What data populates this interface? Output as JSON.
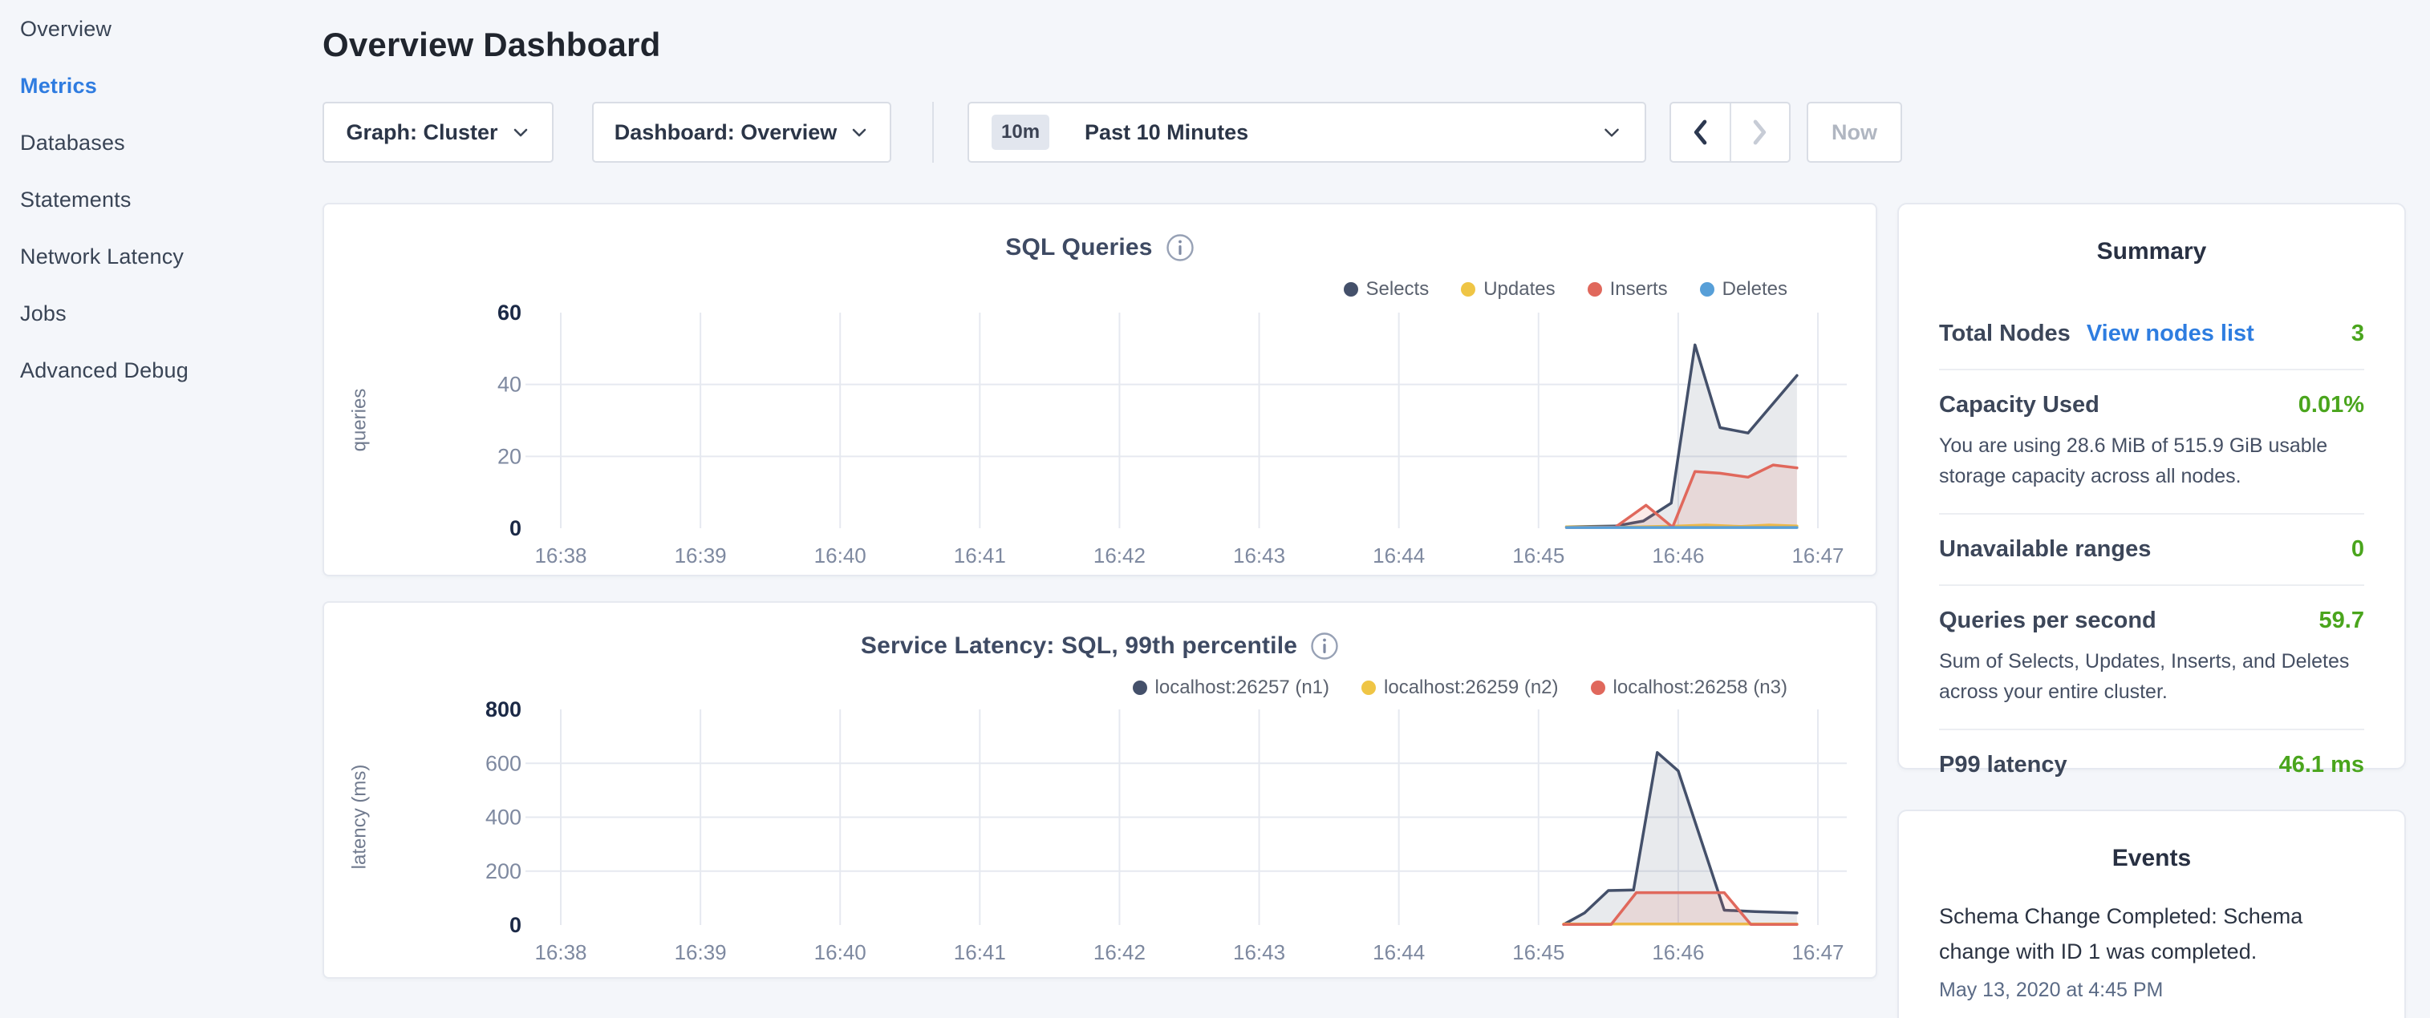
{
  "page": {
    "title": "Overview Dashboard"
  },
  "sidebar": {
    "items": [
      {
        "label": "Overview",
        "active": false
      },
      {
        "label": "Metrics",
        "active": true
      },
      {
        "label": "Databases",
        "active": false
      },
      {
        "label": "Statements",
        "active": false
      },
      {
        "label": "Network Latency",
        "active": false
      },
      {
        "label": "Jobs",
        "active": false
      },
      {
        "label": "Advanced Debug",
        "active": false
      }
    ]
  },
  "toolbar": {
    "graph_dropdown": "Graph: Cluster",
    "dashboard_dropdown": "Dashboard: Overview",
    "time_window_badge": "10m",
    "time_window_label": "Past 10 Minutes",
    "now_button": "Now"
  },
  "colors": {
    "accent_blue": "#2f7ce0",
    "value_green": "#4aa51d",
    "series_navy": "#44506a",
    "series_yellow": "#efc545",
    "series_red": "#e0685c",
    "series_blue": "#579fd8",
    "grid": "#e6e9f0"
  },
  "chart_data": [
    {
      "type": "area",
      "title": "SQL Queries",
      "xlabel": "",
      "ylabel": "queries",
      "ylim": [
        0,
        60
      ],
      "yticks": [
        0,
        20,
        40,
        60
      ],
      "xlim": [
        0,
        9
      ],
      "xticks": [
        0,
        1,
        2,
        3,
        4,
        5,
        6,
        7,
        8,
        9
      ],
      "xtick_labels": [
        "16:38",
        "16:39",
        "16:40",
        "16:41",
        "16:42",
        "16:43",
        "16:44",
        "16:45",
        "16:46",
        "16:47"
      ],
      "grid": true,
      "legend_position": "top-right",
      "series": [
        {
          "name": "Selects",
          "color": "#44506a",
          "fill": "rgba(68,80,106,0.12)",
          "points": [
            [
              7.2,
              0.4
            ],
            [
              7.55,
              0.6
            ],
            [
              7.75,
              2
            ],
            [
              7.95,
              7
            ],
            [
              8.12,
              51
            ],
            [
              8.3,
              28
            ],
            [
              8.5,
              26.5
            ],
            [
              8.85,
              42.5
            ]
          ]
        },
        {
          "name": "Updates",
          "color": "#efc545",
          "fill": "rgba(239,197,69,0.10)",
          "points": [
            [
              7.2,
              0.4
            ],
            [
              7.6,
              0.3
            ],
            [
              8.0,
              0.6
            ],
            [
              8.2,
              0.9
            ],
            [
              8.45,
              0.5
            ],
            [
              8.65,
              0.9
            ],
            [
              8.85,
              0.6
            ]
          ]
        },
        {
          "name": "Inserts",
          "color": "#e0685c",
          "fill": "rgba(224,104,92,0.14)",
          "points": [
            [
              7.2,
              0.2
            ],
            [
              7.55,
              0.3
            ],
            [
              7.77,
              6.4
            ],
            [
              7.96,
              0.3
            ],
            [
              8.12,
              15.8
            ],
            [
              8.3,
              15.3
            ],
            [
              8.5,
              14.2
            ],
            [
              8.68,
              17.6
            ],
            [
              8.85,
              16.8
            ]
          ]
        },
        {
          "name": "Deletes",
          "color": "#579fd8",
          "fill": "none",
          "points": [
            [
              7.2,
              0.2
            ],
            [
              8.85,
              0.2
            ]
          ]
        }
      ]
    },
    {
      "type": "area",
      "title": "Service Latency: SQL, 99th percentile",
      "xlabel": "",
      "ylabel": "latency (ms)",
      "ylim": [
        0,
        800
      ],
      "yticks": [
        0,
        200,
        400,
        600,
        800
      ],
      "xlim": [
        0,
        9
      ],
      "xticks": [
        0,
        1,
        2,
        3,
        4,
        5,
        6,
        7,
        8,
        9
      ],
      "xtick_labels": [
        "16:38",
        "16:39",
        "16:40",
        "16:41",
        "16:42",
        "16:43",
        "16:44",
        "16:45",
        "16:46",
        "16:47"
      ],
      "grid": true,
      "legend_position": "top-right",
      "series": [
        {
          "name": "localhost:26257 (n1)",
          "color": "#44506a",
          "fill": "rgba(68,80,106,0.12)",
          "points": [
            [
              7.18,
              2
            ],
            [
              7.33,
              45
            ],
            [
              7.5,
              128
            ],
            [
              7.68,
              130
            ],
            [
              7.85,
              640
            ],
            [
              8.0,
              572
            ],
            [
              8.33,
              55
            ],
            [
              8.55,
              50
            ],
            [
              8.85,
              45
            ]
          ]
        },
        {
          "name": "localhost:26259 (n2)",
          "color": "#efc545",
          "fill": "rgba(239,197,69,0.10)",
          "points": [
            [
              7.18,
              4
            ],
            [
              8.85,
              4
            ]
          ]
        },
        {
          "name": "localhost:26258 (n3)",
          "color": "#e0685c",
          "fill": "rgba(224,104,92,0.14)",
          "points": [
            [
              7.18,
              2
            ],
            [
              7.52,
              2
            ],
            [
              7.7,
              120
            ],
            [
              8.33,
              120
            ],
            [
              8.52,
              2
            ],
            [
              8.85,
              2
            ]
          ]
        }
      ]
    }
  ],
  "summary": {
    "title": "Summary",
    "rows": [
      {
        "label": "Total Nodes",
        "link": "View nodes list",
        "value": "3"
      },
      {
        "label": "Capacity Used",
        "value": "0.01%",
        "description": "You are using 28.6 MiB of 515.9 GiB usable storage capacity across all nodes."
      },
      {
        "label": "Unavailable ranges",
        "value": "0"
      },
      {
        "label": "Queries per second",
        "value": "59.7",
        "description": "Sum of Selects, Updates, Inserts, and Deletes across your entire cluster."
      },
      {
        "label": "P99 latency",
        "value": "46.1 ms"
      }
    ]
  },
  "events": {
    "title": "Events",
    "items": [
      {
        "text": "Schema Change Completed: Schema change with ID 1 was completed.",
        "timestamp": "May 13, 2020 at 4:45 PM"
      }
    ]
  }
}
